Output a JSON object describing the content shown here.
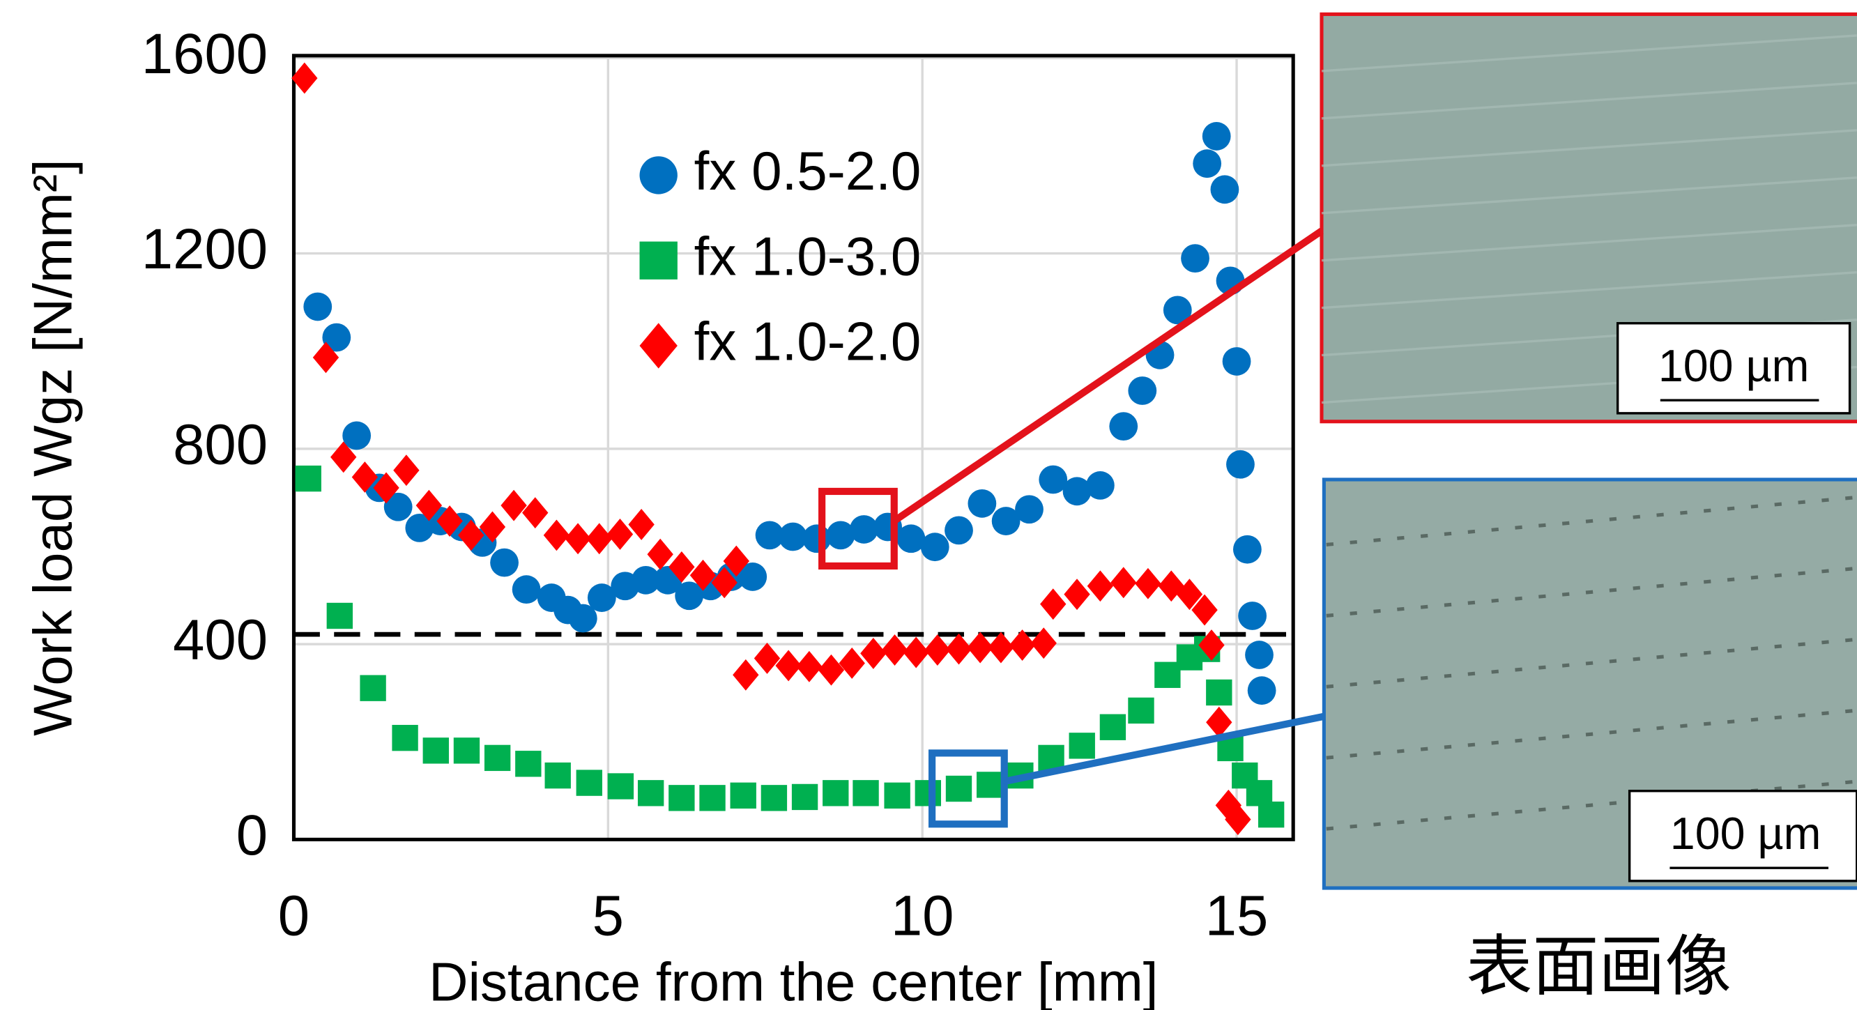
{
  "chart_data": {
    "type": "scatter",
    "x_label": "Distance from the center [mm]",
    "y_label": "Work load Wgz [N/mm²]",
    "xlim": [
      0,
      15.9
    ],
    "ylim": [
      0,
      1605
    ],
    "xticks": [
      0,
      5,
      10,
      15
    ],
    "yticks": [
      0,
      400,
      800,
      1200,
      1600
    ],
    "grid": true,
    "legend": "upper center",
    "reference_line": 420,
    "series": [
      {
        "name": "fx 0.5-2.0",
        "color": "#0070c0",
        "marker": "circle",
        "x": [
          0.38,
          0.68,
          1.0,
          1.36,
          1.66,
          2.0,
          2.33,
          2.67,
          3.0,
          3.35,
          3.7,
          4.1,
          4.36,
          4.6,
          4.9,
          5.27,
          5.6,
          5.95,
          6.29,
          6.63,
          6.96,
          7.3,
          7.57,
          7.94,
          8.32,
          8.7,
          9.07,
          9.45,
          9.82,
          10.2,
          10.58,
          10.95,
          11.33,
          11.7,
          12.08,
          12.46,
          12.83,
          13.2,
          13.5,
          13.78,
          14.06,
          14.34,
          14.53,
          14.68,
          14.81,
          14.9,
          15.0,
          15.06,
          15.17,
          15.25,
          15.36,
          15.4
        ],
        "values": [
          1091,
          1028,
          827,
          720,
          681,
          638,
          652,
          640,
          608,
          567,
          512,
          495,
          470,
          453,
          495,
          519,
          531,
          531,
          499,
          519,
          538,
          538,
          623,
          620,
          616,
          623,
          635,
          640,
          616,
          599,
          633,
          688,
          652,
          676,
          737,
          713,
          725,
          846,
          919,
          992,
          1084,
          1190,
          1384,
          1440,
          1331,
          1144,
          979,
          768,
          594,
          458,
          378,
          305
        ]
      },
      {
        "name": "fx 1.0-3.0",
        "color": "#00b050",
        "marker": "square",
        "x": [
          0.23,
          0.73,
          1.26,
          1.77,
          2.26,
          2.75,
          3.24,
          3.73,
          4.2,
          4.7,
          5.2,
          5.68,
          6.17,
          6.66,
          7.15,
          7.64,
          8.13,
          8.62,
          9.1,
          9.6,
          10.09,
          10.58,
          11.07,
          11.56,
          12.05,
          12.54,
          13.03,
          13.48,
          13.9,
          14.25,
          14.53,
          14.72,
          14.9,
          15.13,
          15.36,
          15.55
        ],
        "values": [
          739,
          458,
          310,
          208,
          182,
          182,
          167,
          155,
          131,
          116,
          109,
          95,
          85,
          85,
          90,
          85,
          87,
          95,
          95,
          90,
          95,
          104,
          112,
          131,
          167,
          192,
          230,
          264,
          337,
          373,
          390,
          301,
          187,
          131,
          95,
          51
        ]
      },
      {
        "name": "fx 1.0-2.0",
        "color": "#ff0000",
        "marker": "diamond",
        "x": [
          0.17,
          0.51,
          0.79,
          1.13,
          1.47,
          1.79,
          2.15,
          2.48,
          2.82,
          3.16,
          3.5,
          3.84,
          4.18,
          4.52,
          4.86,
          5.19,
          5.53,
          5.83,
          6.17,
          6.51,
          6.85,
          7.04,
          7.19,
          7.53,
          7.87,
          8.2,
          8.55,
          8.88,
          9.22,
          9.56,
          9.9,
          10.24,
          10.58,
          10.92,
          11.25,
          11.59,
          11.93,
          12.08,
          12.46,
          12.83,
          13.2,
          13.59,
          13.96,
          14.25,
          14.49,
          14.6,
          14.72,
          14.87,
          15.02
        ],
        "values": [
          1559,
          987,
          783,
          742,
          720,
          756,
          684,
          652,
          623,
          640,
          684,
          669,
          623,
          616,
          616,
          625,
          645,
          584,
          558,
          541,
          526,
          570,
          337,
          371,
          356,
          354,
          347,
          361,
          381,
          388,
          383,
          388,
          390,
          393,
          393,
          398,
          402,
          482,
          502,
          519,
          526,
          524,
          519,
          502,
          470,
          398,
          240,
          70,
          41
        ]
      }
    ]
  },
  "images": [
    {
      "scale_label": "100 µm"
    },
    {
      "scale_label": "100 µm"
    }
  ],
  "caption": "表面画像"
}
